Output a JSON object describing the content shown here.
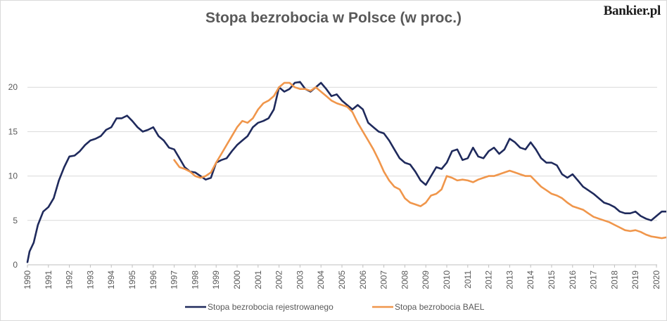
{
  "header": {
    "title": "Stopa bezrobocia w Polsce (w proc.)",
    "logo": "Bankier.pl"
  },
  "colors": {
    "series_1": "#1f2a5c",
    "series_2": "#f0964b",
    "grid": "#d9d9d9",
    "text": "#595959"
  },
  "chart_data": {
    "type": "line",
    "title": "Stopa bezrobocia w Polsce (w proc.)",
    "xlabel": "",
    "ylabel": "",
    "xlim": [
      1990,
      2020.5
    ],
    "ylim": [
      0,
      25
    ],
    "x_ticks": [
      "1990",
      "1991",
      "1992",
      "1993",
      "1994",
      "1995",
      "1996",
      "1997",
      "1998",
      "1999",
      "2000",
      "2001",
      "2002",
      "2003",
      "2004",
      "2005",
      "2006",
      "2007",
      "2008",
      "2009",
      "2010",
      "2011",
      "2012",
      "2013",
      "2014",
      "2015",
      "2016",
      "2017",
      "2018",
      "2019",
      "2020"
    ],
    "y_ticks": [
      "0",
      "5",
      "10",
      "15",
      "20"
    ],
    "grid": "horizontal",
    "legend_position": "bottom",
    "series": [
      {
        "name": "Stopa bezrobocia rejestrowanego",
        "color": "#1f2a5c",
        "x": [
          1990.0,
          1990.1,
          1990.3,
          1990.5,
          1990.75,
          1991.0,
          1991.25,
          1991.5,
          1991.75,
          1992.0,
          1992.25,
          1992.5,
          1992.75,
          1993.0,
          1993.25,
          1993.5,
          1993.75,
          1994.0,
          1994.25,
          1994.5,
          1994.75,
          1995.0,
          1995.25,
          1995.5,
          1995.75,
          1996.0,
          1996.25,
          1996.5,
          1996.75,
          1997.0,
          1997.25,
          1997.5,
          1997.75,
          1998.0,
          1998.25,
          1998.5,
          1998.75,
          1999.0,
          1999.25,
          1999.5,
          1999.75,
          2000.0,
          2000.25,
          2000.5,
          2000.75,
          2001.0,
          2001.25,
          2001.5,
          2001.75,
          2002.0,
          2002.1,
          2002.25,
          2002.5,
          2002.75,
          2003.0,
          2003.25,
          2003.5,
          2003.75,
          2004.0,
          2004.25,
          2004.5,
          2004.75,
          2005.0,
          2005.25,
          2005.5,
          2005.75,
          2006.0,
          2006.25,
          2006.5,
          2006.75,
          2007.0,
          2007.25,
          2007.5,
          2007.75,
          2008.0,
          2008.25,
          2008.5,
          2008.75,
          2009.0,
          2009.25,
          2009.5,
          2009.75,
          2010.0,
          2010.25,
          2010.5,
          2010.75,
          2011.0,
          2011.25,
          2011.5,
          2011.75,
          2012.0,
          2012.25,
          2012.5,
          2012.75,
          2013.0,
          2013.25,
          2013.5,
          2013.75,
          2014.0,
          2014.25,
          2014.5,
          2014.75,
          2015.0,
          2015.25,
          2015.5,
          2015.75,
          2016.0,
          2016.25,
          2016.5,
          2016.75,
          2017.0,
          2017.25,
          2017.5,
          2017.75,
          2018.0,
          2018.25,
          2018.5,
          2018.75,
          2019.0,
          2019.25,
          2019.5,
          2019.75,
          2020.0,
          2020.25,
          2020.5
        ],
        "values": [
          0.3,
          1.5,
          2.5,
          4.5,
          6.0,
          6.5,
          7.5,
          9.5,
          11.0,
          12.2,
          12.3,
          12.8,
          13.5,
          14.0,
          14.2,
          14.5,
          15.2,
          15.5,
          16.5,
          16.5,
          16.8,
          16.2,
          15.5,
          15.0,
          15.2,
          15.5,
          14.5,
          14.0,
          13.2,
          13.0,
          12.0,
          11.0,
          10.5,
          10.4,
          10.0,
          9.6,
          9.8,
          11.5,
          11.8,
          12.0,
          12.8,
          13.5,
          14.0,
          14.5,
          15.5,
          16.0,
          16.2,
          16.5,
          17.5,
          20.0,
          19.8,
          19.5,
          19.8,
          20.5,
          20.6,
          19.8,
          19.5,
          20.0,
          20.5,
          19.8,
          19.0,
          19.2,
          18.5,
          18.0,
          17.5,
          18.0,
          17.5,
          16.0,
          15.5,
          15.0,
          14.8,
          14.0,
          13.0,
          12.0,
          11.5,
          11.3,
          10.5,
          9.5,
          9.0,
          10.0,
          11.0,
          10.8,
          11.5,
          12.8,
          13.0,
          11.8,
          12.0,
          13.2,
          12.2,
          12.0,
          12.8,
          13.2,
          12.5,
          13.0,
          14.2,
          13.8,
          13.2,
          13.0,
          13.8,
          13.0,
          12.0,
          11.5,
          11.5,
          11.2,
          10.2,
          9.8,
          10.2,
          9.5,
          8.8,
          8.4,
          8.0,
          7.5,
          7.0,
          6.8,
          6.5,
          6.0,
          5.8,
          5.8,
          6.0,
          5.5,
          5.2,
          5.0,
          5.5,
          6.0,
          6.0
        ]
      },
      {
        "name": "Stopa bezrobocia BAEL",
        "color": "#f0964b",
        "x": [
          1997.0,
          1997.25,
          1997.5,
          1997.75,
          1998.0,
          1998.25,
          1998.5,
          1998.75,
          1999.0,
          1999.25,
          1999.5,
          1999.75,
          2000.0,
          2000.25,
          2000.5,
          2000.75,
          2001.0,
          2001.25,
          2001.5,
          2001.75,
          2002.0,
          2002.25,
          2002.5,
          2002.75,
          2003.0,
          2003.25,
          2003.5,
          2003.75,
          2004.0,
          2004.25,
          2004.5,
          2004.75,
          2005.0,
          2005.25,
          2005.5,
          2005.75,
          2006.0,
          2006.25,
          2006.5,
          2006.75,
          2007.0,
          2007.25,
          2007.5,
          2007.75,
          2008.0,
          2008.25,
          2008.5,
          2008.75,
          2009.0,
          2009.25,
          2009.5,
          2009.75,
          2010.0,
          2010.25,
          2010.5,
          2010.75,
          2011.0,
          2011.25,
          2011.5,
          2011.75,
          2012.0,
          2012.25,
          2012.5,
          2012.75,
          2013.0,
          2013.25,
          2013.5,
          2013.75,
          2014.0,
          2014.25,
          2014.5,
          2014.75,
          2015.0,
          2015.25,
          2015.5,
          2015.75,
          2016.0,
          2016.25,
          2016.5,
          2016.75,
          2017.0,
          2017.25,
          2017.5,
          2017.75,
          2018.0,
          2018.25,
          2018.5,
          2018.75,
          2019.0,
          2019.25,
          2019.5,
          2019.75,
          2020.0,
          2020.25,
          2020.5
        ],
        "values": [
          11.8,
          11.0,
          10.8,
          10.5,
          10.0,
          9.8,
          10.0,
          10.4,
          11.5,
          12.5,
          13.5,
          14.5,
          15.5,
          16.2,
          16.0,
          16.5,
          17.5,
          18.2,
          18.5,
          19.0,
          20.0,
          20.5,
          20.5,
          20.0,
          19.8,
          19.8,
          19.6,
          20.0,
          19.5,
          19.0,
          18.5,
          18.2,
          18.0,
          17.8,
          17.2,
          16.0,
          15.0,
          14.0,
          13.0,
          11.8,
          10.5,
          9.5,
          8.8,
          8.5,
          7.5,
          7.0,
          6.8,
          6.6,
          7.0,
          7.8,
          8.0,
          8.5,
          10.0,
          9.8,
          9.5,
          9.6,
          9.5,
          9.3,
          9.6,
          9.8,
          10.0,
          10.0,
          10.2,
          10.4,
          10.6,
          10.4,
          10.2,
          10.0,
          10.0,
          9.4,
          8.8,
          8.4,
          8.0,
          7.8,
          7.5,
          7.0,
          6.6,
          6.4,
          6.2,
          5.8,
          5.4,
          5.2,
          5.0,
          4.8,
          4.5,
          4.2,
          3.9,
          3.8,
          3.9,
          3.7,
          3.4,
          3.2,
          3.1,
          3.0,
          3.1
        ]
      }
    ]
  }
}
